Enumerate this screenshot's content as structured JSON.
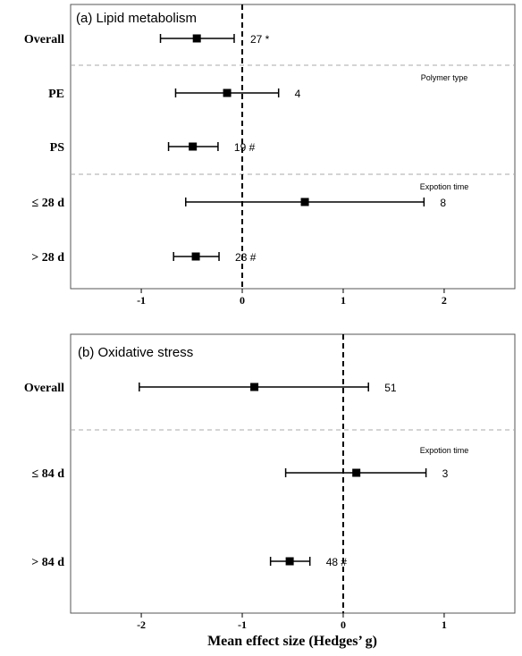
{
  "chart_data": [
    {
      "type": "forest",
      "title": "(a) Lipid metabolism",
      "xlim": [
        -1.7,
        2.7
      ],
      "xticks": [
        "-1",
        "0",
        "1",
        "2"
      ],
      "xtick_values": [
        -1,
        0,
        1,
        2
      ],
      "reference_line": 0,
      "rows": [
        {
          "label": "Overall",
          "mean": -0.45,
          "ci_low": -0.81,
          "ci_high": -0.08,
          "n": "27",
          "marker": "*"
        },
        {
          "label": "PE",
          "mean": -0.15,
          "ci_low": -0.66,
          "ci_high": 0.36,
          "n": "4",
          "marker": ""
        },
        {
          "label": "PS",
          "mean": -0.49,
          "ci_low": -0.73,
          "ci_high": -0.24,
          "n": "19",
          "marker": "#"
        },
        {
          "label": "≤ 28 d",
          "mean": 0.62,
          "ci_low": -0.56,
          "ci_high": 1.8,
          "n": "8",
          "marker": ""
        },
        {
          "label": "> 28 d",
          "mean": -0.46,
          "ci_low": -0.68,
          "ci_high": -0.23,
          "n": "23",
          "marker": "#"
        }
      ],
      "dividers_after_row": [
        0,
        2
      ],
      "group_notes": [
        {
          "text": "Polymer type",
          "row": 1
        },
        {
          "text": "Expotion time",
          "row": 3
        }
      ]
    },
    {
      "type": "forest",
      "title": "(b) Oxidative stress",
      "xlim": [
        -2.7,
        1.7
      ],
      "xticks": [
        "-2",
        "-1",
        "0",
        "1"
      ],
      "xtick_values": [
        -2,
        -1,
        0,
        1
      ],
      "reference_line": 0,
      "xlabel": "Mean effect size (Hedges’ g)",
      "rows": [
        {
          "label": "Overall",
          "mean": -0.88,
          "ci_low": -2.02,
          "ci_high": 0.25,
          "n": "51",
          "marker": ""
        },
        {
          "label": "≤ 84 d",
          "mean": 0.13,
          "ci_low": -0.57,
          "ci_high": 0.82,
          "n": "3",
          "marker": ""
        },
        {
          "label": "> 84 d",
          "mean": -0.53,
          "ci_low": -0.72,
          "ci_high": -0.33,
          "n": "48",
          "marker": "#"
        }
      ],
      "dividers_after_row": [
        0
      ],
      "group_notes": [
        {
          "text": "Expotion time",
          "row": 1
        }
      ]
    }
  ]
}
